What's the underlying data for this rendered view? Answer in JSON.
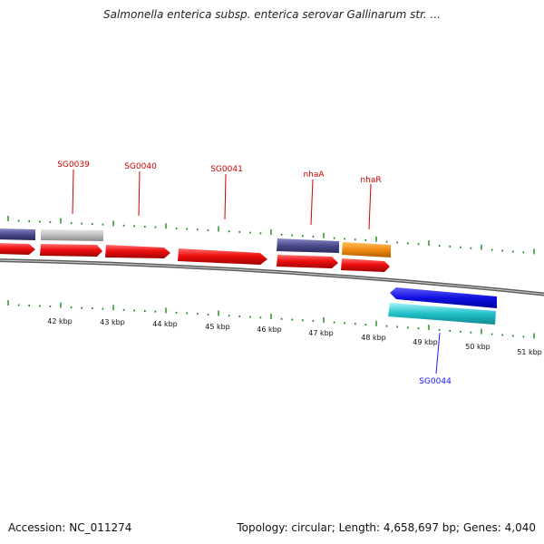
{
  "title": "Salmonella enterica subsp. enterica serovar Gallinarum str. ...",
  "footer": {
    "accession": "Accession: NC_011274",
    "summary": "Topology: circular; Length: 4,658,697 bp; Genes: 4,040"
  },
  "colors": {
    "forward_cds": "#e01010",
    "purple_feature": "#4a4a8c",
    "gray_feature": "#b8b8b8",
    "orange_feature": "#f08a10",
    "reverse_blue": "#1010e0",
    "cyan_feature": "#20c0c8",
    "backbone": "#888888",
    "tick_green": "#1a8a1a",
    "label_red": "#cc0000",
    "label_blue": "#1a1aff"
  },
  "gene_labels": [
    "SG0039",
    "SG0040",
    "SG0041",
    "nhaA",
    "nhaR",
    "SG0044"
  ],
  "kbp_labels": [
    "42 kbp",
    "43 kbp",
    "44 kbp",
    "45 kbp",
    "46 kbp",
    "47 kbp",
    "48 kbp",
    "49 kbp",
    "50 kbp",
    "51 kbp"
  ]
}
